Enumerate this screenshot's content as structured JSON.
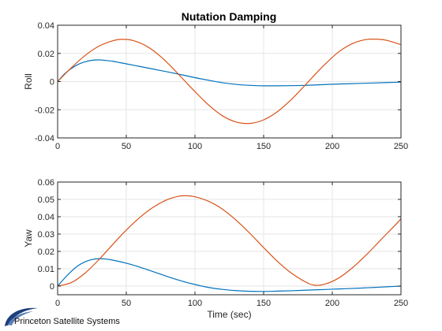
{
  "figure": {
    "title": "Nutation Damping",
    "logo_text": "Princeton Satellite Systems"
  },
  "colors": {
    "series_blue": "#0072bd",
    "series_orange": "#d95319",
    "grid": "#e6e6e6",
    "axis": "#262626"
  },
  "chart_data": [
    {
      "type": "line",
      "title": "Nutation Damping",
      "xlabel": "",
      "ylabel": "Roll",
      "xlim": [
        0,
        250
      ],
      "ylim": [
        -0.04,
        0.04
      ],
      "xticks": [
        0,
        50,
        100,
        150,
        200,
        250
      ],
      "yticks": [
        -0.04,
        -0.02,
        0,
        0.02,
        0.04
      ],
      "xtick_labels": [
        "0",
        "50",
        "100",
        "150",
        "200",
        "250"
      ],
      "ytick_labels": [
        "-0.04",
        "-0.02",
        "0",
        "0.02",
        "0.04"
      ],
      "grid": true,
      "series": [
        {
          "color": "#0072bd",
          "x": [
            0,
            5,
            10,
            15,
            20,
            25,
            30,
            35,
            40,
            45,
            50,
            60,
            70,
            80,
            90,
            100,
            110,
            120,
            130,
            140,
            150,
            160,
            170,
            180,
            190,
            200,
            210,
            220,
            230,
            240,
            250
          ],
          "y": [
            0,
            0.0054,
            0.0093,
            0.0122,
            0.014,
            0.0151,
            0.0154,
            0.015,
            0.0144,
            0.0135,
            0.0126,
            0.0107,
            0.0088,
            0.0069,
            0.0049,
            0.0028,
            0.0009,
            -0.0008,
            -0.002,
            -0.0027,
            -0.003,
            -0.003,
            -0.0029,
            -0.0027,
            -0.0023,
            -0.0019,
            -0.0016,
            -0.0013,
            -0.001,
            -0.0007,
            -0.0004
          ]
        },
        {
          "color": "#d95319",
          "x": [
            0,
            10,
            20,
            30,
            40,
            47,
            55,
            65,
            75,
            85,
            93,
            100,
            110,
            120,
            130,
            140,
            150,
            160,
            170,
            180,
            187,
            195,
            205,
            215,
            225,
            234,
            240,
            250
          ],
          "y": [
            0,
            0.0098,
            0.0185,
            0.0251,
            0.0289,
            0.03,
            0.0291,
            0.025,
            0.0178,
            0.0083,
            0,
            -0.0071,
            -0.0167,
            -0.0243,
            -0.0287,
            -0.0297,
            -0.0272,
            -0.0214,
            -0.0129,
            -0.0028,
            0.0046,
            0.0126,
            0.0213,
            0.0271,
            0.0299,
            0.03,
            0.0292,
            0.0262
          ]
        }
      ]
    },
    {
      "type": "line",
      "title": "",
      "xlabel": "Time (sec)",
      "ylabel": "Yaw",
      "xlim": [
        0,
        250
      ],
      "ylim": [
        -0.005,
        0.06
      ],
      "xticks": [
        0,
        50,
        100,
        150,
        200,
        250
      ],
      "yticks": [
        0,
        0.01,
        0.02,
        0.03,
        0.04,
        0.05,
        0.06
      ],
      "xtick_labels": [
        "0",
        "50",
        "100",
        "150",
        "200",
        "250"
      ],
      "ytick_labels": [
        "0",
        "0.01",
        "0.02",
        "0.03",
        "0.04",
        "0.05",
        "0.06"
      ],
      "grid": true,
      "series": [
        {
          "color": "#0072bd",
          "x": [
            0,
            5,
            10,
            15,
            20,
            25,
            30,
            35,
            40,
            50,
            60,
            70,
            80,
            90,
            100,
            110,
            120,
            130,
            140,
            150,
            160,
            170,
            180,
            190,
            200,
            210,
            220,
            230,
            240,
            250
          ],
          "y": [
            0,
            0.0045,
            0.0085,
            0.0118,
            0.014,
            0.0153,
            0.0158,
            0.0156,
            0.015,
            0.0132,
            0.0109,
            0.0082,
            0.0055,
            0.003,
            0.0009,
            -0.0008,
            -0.0019,
            -0.0026,
            -0.003,
            -0.0031,
            -0.0029,
            -0.0027,
            -0.0024,
            -0.0021,
            -0.0018,
            -0.0015,
            -0.0012,
            -0.0008,
            -0.0004,
            0
          ]
        },
        {
          "color": "#d95319",
          "x": [
            0,
            10,
            20,
            30,
            40,
            50,
            60,
            70,
            80,
            88,
            93,
            100,
            110,
            120,
            130,
            140,
            150,
            160,
            170,
            180,
            187,
            195,
            205,
            215,
            225,
            235,
            245,
            250
          ],
          "y": [
            0,
            0.002,
            0.0075,
            0.0152,
            0.0239,
            0.0323,
            0.0397,
            0.0457,
            0.0499,
            0.0518,
            0.0521,
            0.0515,
            0.0489,
            0.0444,
            0.038,
            0.0304,
            0.0222,
            0.0143,
            0.0076,
            0.0026,
            0.0005,
            0.0012,
            0.0048,
            0.0108,
            0.0182,
            0.0264,
            0.0345,
            0.0388
          ]
        }
      ]
    }
  ]
}
